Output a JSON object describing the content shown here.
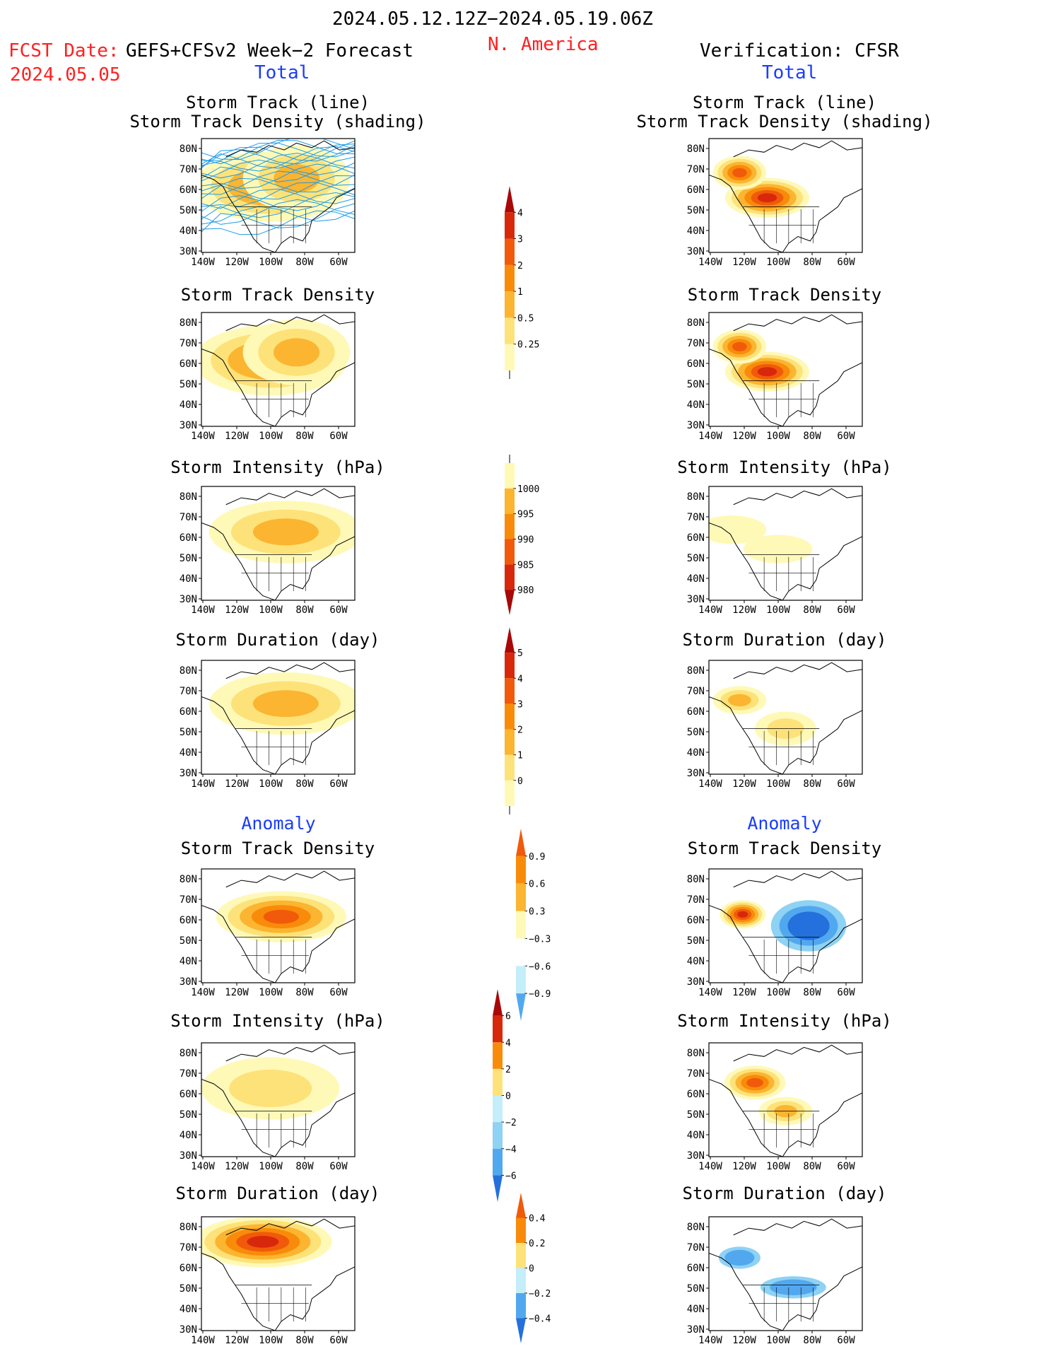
{
  "header": {
    "date_range": "2024.05.12.12Z−2024.05.19.06Z",
    "region": "N. America",
    "fcst_label": "FCST Date:",
    "fcst_model": "GEFS+CFSv2 Week−2 Forecast",
    "fcst_date": "2024.05.05",
    "verification": "Verification: CFSR",
    "total_left": "Total",
    "total_right": "Total",
    "anomaly_left": "Anomaly",
    "anomaly_right": "Anomaly"
  },
  "panel_titles": {
    "track_line": "Storm Track (line)",
    "track_shading": "Storm Track Density (shading)",
    "density": "Storm Track Density",
    "intensity": "Storm Intensity (hPa)",
    "duration": "Storm Duration (day)"
  },
  "axes": {
    "lat_labels": [
      "80N",
      "70N",
      "60N",
      "50N",
      "40N",
      "30N"
    ],
    "lon_labels": [
      "140W",
      "120W",
      "100W",
      "80W",
      "60W"
    ]
  },
  "colors": {
    "positive_ramp": [
      "#fff9b8",
      "#fde27a",
      "#fbb530",
      "#f98b0a",
      "#f05a0a",
      "#d8280c",
      "#a80808"
    ],
    "negative_ramp": [
      "#c4eefa",
      "#8ed2f4",
      "#52a8ee",
      "#2470dc",
      "#1850c8"
    ],
    "track_lines": "#1e9be6",
    "map_outline": "#000000",
    "header_red": "#ff2020",
    "header_blue": "#1a3cff"
  },
  "colorbars": {
    "total_density": [
      "4",
      "3",
      "2",
      "1",
      "0.5",
      "0.25"
    ],
    "total_intensity": [
      "1000",
      "995",
      "990",
      "985",
      "980"
    ],
    "total_duration": [
      "5",
      "4",
      "3",
      "2",
      "1",
      "0"
    ],
    "anom_density": [
      "0.9",
      "0.6",
      "0.3",
      "−0.3",
      "−0.6",
      "−0.9"
    ],
    "anom_intensity": [
      "6",
      "4",
      "2",
      "0",
      "−2",
      "−4",
      "−6"
    ],
    "anom_duration": [
      "0.4",
      "0.2",
      "0",
      "−0.2",
      "−0.4"
    ]
  },
  "map_data": {
    "forecast": {
      "total_density": [
        [
          0.45,
          0.42,
          1.0,
          0.62,
          3
        ],
        [
          0.62,
          0.35,
          0.7,
          0.58,
          2
        ]
      ],
      "total_intensity": [
        [
          0.55,
          0.4,
          1.0,
          0.55,
          2
        ]
      ],
      "total_duration": [
        [
          0.55,
          0.38,
          1.0,
          0.55,
          2
        ]
      ],
      "anom_density": [
        [
          0.52,
          0.42,
          0.85,
          0.45,
          4
        ]
      ],
      "anom_intensity": [
        [
          0.45,
          0.4,
          0.9,
          0.55,
          1
        ]
      ],
      "anom_duration": [
        [
          0.4,
          0.22,
          0.9,
          0.45,
          5
        ]
      ]
    },
    "verification": {
      "total_density": [
        [
          0.38,
          0.52,
          0.55,
          0.35,
          5
        ],
        [
          0.2,
          0.3,
          0.35,
          0.3,
          4
        ]
      ],
      "total_intensity": [
        [
          0.15,
          0.38,
          0.45,
          0.25,
          0
        ],
        [
          0.45,
          0.55,
          0.45,
          0.25,
          0
        ]
      ],
      "total_duration": [
        [
          0.2,
          0.35,
          0.35,
          0.25,
          2
        ],
        [
          0.5,
          0.6,
          0.4,
          0.3,
          1
        ]
      ],
      "anom_density": [
        [
          0.22,
          0.4,
          0.3,
          0.25,
          5
        ],
        [
          0.65,
          0.5,
          0.6,
          0.55,
          -4
        ]
      ],
      "anom_intensity": [
        [
          0.3,
          0.35,
          0.4,
          0.3,
          4
        ],
        [
          0.5,
          0.6,
          0.35,
          0.25,
          2
        ]
      ],
      "anom_duration": [
        [
          0.2,
          0.36,
          0.35,
          0.25,
          -3
        ],
        [
          0.55,
          0.62,
          0.55,
          0.25,
          -3
        ]
      ]
    }
  }
}
